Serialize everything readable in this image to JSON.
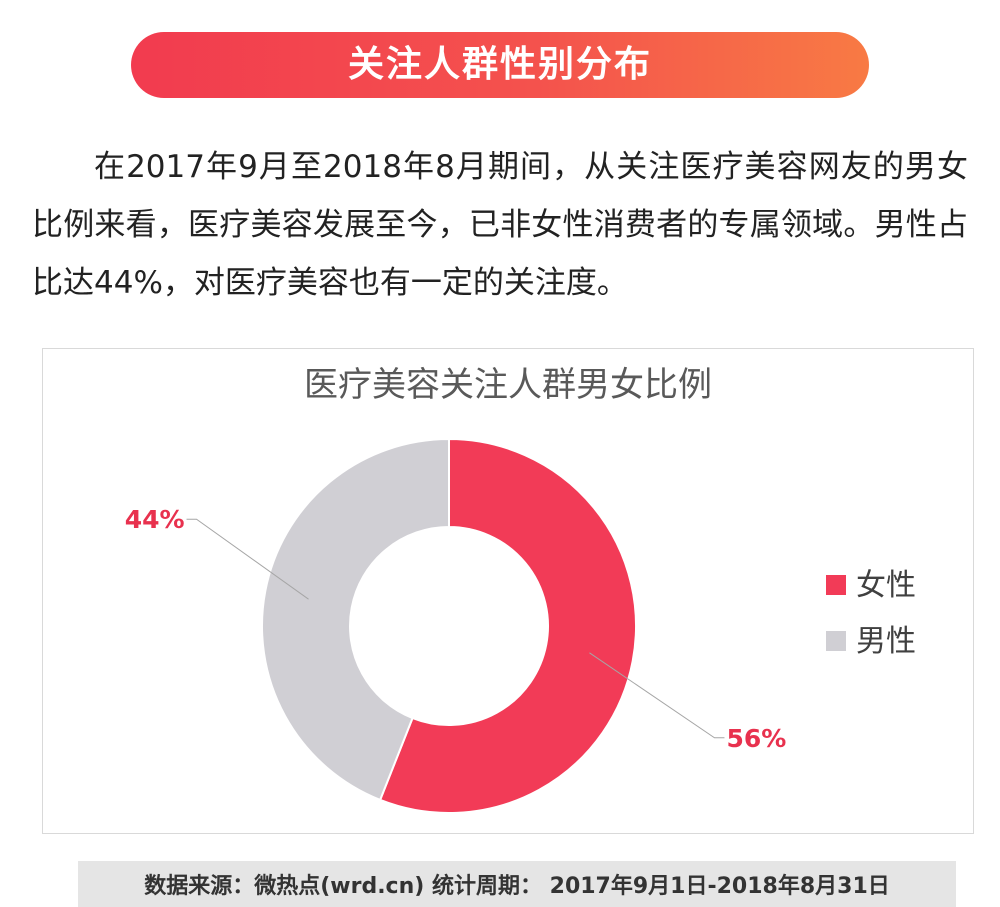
{
  "header": {
    "title": "关注人群性别分布"
  },
  "intro": {
    "text": "在2017年9月至2018年8月期间，从关注医疗美容网友的男女比例来看，医疗美容发展至今，已非女性消费者的专属领域。男性占比达44%，对医疗美容也有一定的关注度。"
  },
  "chart_data": {
    "type": "pie",
    "style": "donut",
    "title": "医疗美容关注人群男女比例",
    "series": [
      {
        "name": "女性",
        "value": 56,
        "label": "56%",
        "color": "#f23b57"
      },
      {
        "name": "男性",
        "value": 44,
        "label": "44%",
        "color": "#d0cfd4"
      }
    ],
    "legend_position": "right",
    "label_color": "#e8314e"
  },
  "footer": {
    "text": "数据来源：微热点(wrd.cn)  统计周期：  2017年9月1日-2018年8月31日"
  }
}
